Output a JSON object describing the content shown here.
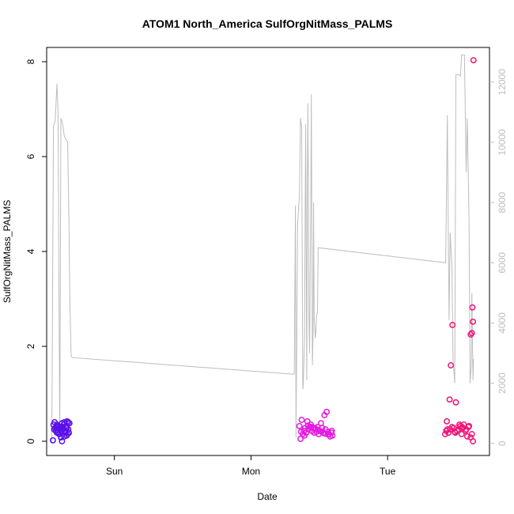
{
  "chart_data": {
    "type": "scatter",
    "title": "ATOM1 North_America SulfOrgNitMass_PALMS",
    "xlabel": "Date",
    "ylabel": "SulfOrgNitMass_PALMS",
    "x_ticks": [
      "Sun",
      "Mon",
      "Tue"
    ],
    "x_tick_hours": [
      24,
      48,
      72
    ],
    "xlim_hours": [
      12.1,
      89.9
    ],
    "ylim": [
      -0.3,
      8.3
    ],
    "y_ticks": [
      "0",
      "2",
      "4",
      "6",
      "8"
    ],
    "y2lim": [
      -400,
      13150
    ],
    "y2_ticks": [
      "0",
      "2000",
      "4000",
      "6000",
      "8000",
      "10000",
      "12000"
    ],
    "grid": false,
    "legend": "none",
    "colors": {
      "axis": "#000000",
      "altitude_line": "#bdbdbd",
      "secondary_axis": "#bdbdbd",
      "points": [
        "#5a10e8",
        "#e41ae0",
        "#f01478"
      ]
    },
    "series": [
      {
        "x_hours": [
          13.2,
          13.3,
          13.5,
          13.6,
          13.7,
          13.8,
          13.9,
          14.0,
          14.1,
          14.2,
          14.3,
          14.4,
          14.5,
          14.6,
          14.7,
          14.8,
          14.9,
          15.0,
          15.1,
          15.2,
          15.3,
          15.4,
          15.5,
          15.6,
          15.7,
          15.8,
          15.9,
          16.0,
          16.1,
          13.4,
          14.0,
          14.8,
          15.6,
          15.9,
          15.4,
          14.6,
          13.9,
          15.2
        ],
        "y": [
          0.02,
          0.35,
          0.4,
          0.28,
          0.22,
          0.3,
          0.18,
          0.25,
          0.2,
          0.32,
          0.15,
          0.28,
          0.22,
          0.08,
          0.2,
          0.38,
          0.3,
          0.25,
          0.35,
          0.4,
          0.22,
          0.18,
          0.3,
          0.28,
          0.42,
          0.15,
          0.25,
          0.18,
          0.38,
          0.25,
          0.3,
          0.0,
          0.12,
          0.4,
          0.22,
          0.28,
          0.35,
          0.1
        ],
        "color": "#5a10e8"
      },
      {
        "x_hours": [
          56.5,
          56.7,
          56.9,
          57.1,
          57.3,
          57.5,
          57.7,
          57.9,
          58.1,
          58.3,
          58.5,
          58.7,
          58.9,
          59.1,
          59.3,
          59.5,
          59.7,
          59.9,
          60.1,
          60.3,
          60.5,
          60.7,
          60.9,
          61.1,
          61.3,
          61.5,
          61.7,
          61.9,
          62.1,
          62.3,
          56.8,
          57.4,
          58.0,
          58.6,
          59.2,
          59.8,
          60.4,
          61.0,
          61.6,
          62.2
        ],
        "y": [
          0.32,
          0.05,
          0.45,
          0.15,
          0.22,
          0.28,
          0.18,
          0.42,
          0.25,
          0.3,
          0.35,
          0.22,
          0.28,
          0.18,
          0.25,
          0.2,
          0.3,
          0.15,
          0.22,
          0.38,
          0.28,
          0.18,
          0.55,
          0.25,
          0.62,
          0.2,
          0.15,
          0.1,
          0.18,
          0.12,
          0.2,
          0.12,
          0.33,
          0.3,
          0.28,
          0.24,
          0.2,
          0.16,
          0.14,
          0.22
        ],
        "color": "#e41ae0"
      },
      {
        "x_hours": [
          82.1,
          82.4,
          82.7,
          83.0,
          83.3,
          83.6,
          83.9,
          84.2,
          84.5,
          84.8,
          85.1,
          85.4,
          85.7,
          86.0,
          86.3,
          86.6,
          86.8,
          86.9,
          87.0,
          87.1,
          82.5,
          82.9,
          83.1,
          83.4,
          84.0,
          84.6,
          85.2,
          85.8,
          86.2,
          86.6,
          86.8,
          87.0,
          83.8,
          82.3,
          85.0
        ],
        "y": [
          0.15,
          0.42,
          0.18,
          0.25,
          0.3,
          0.28,
          0.18,
          0.22,
          0.25,
          0.32,
          0.3,
          0.35,
          0.22,
          0.1,
          0.32,
          2.25,
          2.28,
          2.82,
          2.52,
          8.03,
          0.25,
          0.88,
          1.6,
          2.45,
          0.82,
          0.35,
          0.28,
          0.25,
          0.3,
          0.08,
          0.15,
          0.0,
          0.2,
          0.22,
          0.15
        ],
        "color": "#f01478"
      }
    ],
    "secondary_series": {
      "name": "",
      "axis": "right",
      "x_hours": [
        13.0,
        13.3,
        13.6,
        13.9,
        14.1,
        14.4,
        14.6,
        14.8,
        15.0,
        15.2,
        15.5,
        15.8,
        16.0,
        16.2,
        16.4,
        16.6,
        55.5,
        55.6,
        55.8,
        55.9,
        56.2,
        56.5,
        56.7,
        56.9,
        57.1,
        57.2,
        57.4,
        57.6,
        57.8,
        57.9,
        58.0,
        58.2,
        58.3,
        58.5,
        58.6,
        58.7,
        58.8,
        58.9,
        59.0,
        59.1,
        59.3,
        59.4,
        59.5,
        59.6,
        59.7,
        59.8,
        82.2,
        82.5,
        82.8,
        83.0,
        83.3,
        83.5,
        83.8,
        84.0,
        84.3,
        84.5,
        84.8,
        85.0,
        85.3,
        85.5,
        85.8,
        86.0,
        86.3,
        86.5,
        86.7,
        86.8,
        87.0,
        87.1
      ],
      "y": [
        0,
        10550,
        10700,
        11950,
        11000,
        0,
        10800,
        10700,
        10500,
        10200,
        10100,
        10000,
        7500,
        4500,
        2900,
        2850,
        2300,
        2300,
        7900,
        200,
        7300,
        8200,
        10800,
        10500,
        1800,
        2000,
        3500,
        10600,
        2100,
        8800,
        11300,
        4000,
        3000,
        7900,
        11600,
        7000,
        2600,
        3600,
        8000,
        4200,
        3500,
        3700,
        4200,
        4300,
        4400,
        6500,
        6000,
        10900,
        4100,
        7000,
        5900,
        2800,
        2000,
        12250,
        12250,
        12250,
        12200,
        12900,
        12900,
        12900,
        9000,
        10800,
        7500,
        2000,
        2600,
        5000,
        2100,
        2800
      ]
    }
  }
}
